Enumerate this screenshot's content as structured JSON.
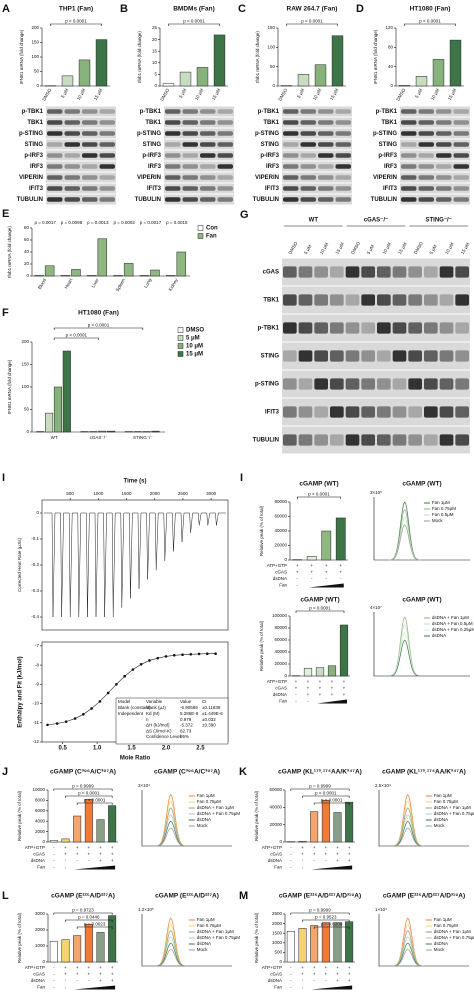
{
  "panels": [
    {
      "label": "A",
      "type": "bar",
      "title": "THP1 (Fan)",
      "ylabel": "IFNB1 mRNA (fold change)",
      "categories": [
        "DMSO",
        "5 μM",
        "10 μM",
        "15 μM"
      ],
      "values": [
        1,
        35,
        90,
        160
      ],
      "colors": [
        "#ffffff",
        "#c8dcc0",
        "#88b27c",
        "#3d7548"
      ],
      "ylim": [
        0,
        200
      ],
      "yticks": [
        0,
        50,
        100,
        150,
        200
      ],
      "annotations": [
        "p < 0.0001"
      ],
      "blot": [
        "p-TBK1",
        "TBK1",
        "p-STING",
        "STING",
        "p-IRF3",
        "IRF3",
        "VIPERIN",
        "IFIT3",
        "TUBULIN"
      ]
    },
    {
      "label": "B",
      "type": "bar",
      "title": "BMDMs (Fan)",
      "ylabel": "Ifnb1 mRNA (fold change)",
      "categories": [
        "DMSO",
        "5 μM",
        "10 μM",
        "15 μM"
      ],
      "values": [
        1,
        6,
        8,
        22
      ],
      "colors": [
        "#ffffff",
        "#c8dcc0",
        "#88b27c",
        "#3d7548"
      ],
      "ylim": [
        0,
        25
      ],
      "yticks": [
        0,
        5,
        10,
        15,
        20,
        25
      ],
      "annotations": [
        "p < 0.0001"
      ],
      "blot": [
        "p-TBK1",
        "TBK1",
        "p-STING",
        "STING",
        "p-IRF3",
        "IRF3",
        "VIPERIN",
        "IFIT3",
        "TUBULIN"
      ]
    },
    {
      "label": "C",
      "type": "bar",
      "title": "RAW 264.7 (Fan)",
      "ylabel": "Ifnb1 mRNA (fold change)",
      "categories": [
        "DMSO",
        "5 μM",
        "10 μM",
        "15 μM"
      ],
      "values": [
        1,
        30,
        55,
        130
      ],
      "colors": [
        "#ffffff",
        "#c8dcc0",
        "#88b27c",
        "#3d7548"
      ],
      "ylim": [
        0,
        150
      ],
      "yticks": [
        0,
        50,
        100,
        150
      ],
      "annotations": [
        "p < 0.0001"
      ],
      "blot": [
        "p-TBK1",
        "TBK1",
        "p-STING",
        "STING",
        "p-IRF3",
        "IRF3",
        "VIPERIN",
        "IFIT3",
        "TUBULIN"
      ]
    },
    {
      "label": "D",
      "type": "bar",
      "title": "HT1080 (Fan)",
      "ylabel": "IFNB1 mRNA (fold change)",
      "categories": [
        "DMSO",
        "5 μM",
        "10 μM",
        "15 μM"
      ],
      "values": [
        1,
        20,
        55,
        95
      ],
      "colors": [
        "#ffffff",
        "#c8dcc0",
        "#88b27c",
        "#3d7548"
      ],
      "ylim": [
        0,
        120
      ],
      "yticks": [
        0,
        40,
        80,
        120
      ],
      "annotations": [
        "p < 0.0001"
      ],
      "blot": [
        "p-TBK1",
        "TBK1",
        "p-STING",
        "STING",
        "p-IRF3",
        "IRF3",
        "VIPERIN",
        "IFIT3",
        "TUBULIN"
      ]
    },
    {
      "label": "E",
      "type": "grouped",
      "ylabel": "Ifnb1 mRNA (fold change)",
      "categories": [
        "Blood",
        "Heart",
        "Liver",
        "Spleen",
        "Lung",
        "Kidney"
      ],
      "series": [
        {
          "name": "Con",
          "color": "#ffffff",
          "values": [
            1,
            1,
            1,
            1,
            1,
            1
          ]
        },
        {
          "name": "Fan",
          "color": "#8fb880",
          "values": [
            17,
            11,
            62,
            21,
            10,
            40
          ]
        }
      ],
      "ylim": [
        0,
        80
      ],
      "yticks": [
        0,
        20,
        40,
        60,
        80
      ],
      "pvalues": [
        "p = 0.0017",
        "p = 0.0098",
        "p = 0.0013",
        "p = 0.0002",
        "p = 0.0017",
        "p = 0.0015"
      ]
    },
    {
      "label": "F",
      "type": "grouped",
      "title": "HT1080 (Fan)",
      "ylabel": "IFNB1 mRNA (fold change)",
      "categories": [
        "WT",
        "cGAS⁻/⁻",
        "STING⁻/⁻"
      ],
      "series": [
        {
          "name": "DMSO",
          "color": "#ffffff",
          "values": [
            1,
            1,
            1
          ]
        },
        {
          "name": "5 μM",
          "color": "#c8dcc0",
          "values": [
            42,
            1,
            1
          ]
        },
        {
          "name": "10 μM",
          "color": "#88b27c",
          "values": [
            100,
            2,
            1
          ]
        },
        {
          "name": "15 μM",
          "color": "#3d7548",
          "values": [
            180,
            2,
            2
          ]
        }
      ],
      "ylim": [
        0,
        200
      ],
      "yticks": [
        0,
        50,
        100,
        150,
        200
      ],
      "annotations": [
        "p < 0.0001",
        "p < 0.0001"
      ]
    },
    {
      "label": "G",
      "type": "blot",
      "groups": [
        {
          "name": "WT",
          "lanes": [
            "DMSO",
            "5 μM",
            "10 μM",
            "15 μM"
          ]
        },
        {
          "name": "cGAS⁻/⁻",
          "lanes": [
            "DMSO",
            "5 μM",
            "10 μM",
            "15 μM"
          ]
        },
        {
          "name": "STING⁻/⁻",
          "lanes": [
            "DMSO",
            "5 μM",
            "10 μM",
            "15 μM"
          ]
        }
      ],
      "rows": [
        "cGAS",
        "TBK1",
        "p-TBK1",
        "STING",
        "p-STING",
        "IFIT3",
        "TUBULIN"
      ]
    },
    {
      "label": "I",
      "type": "itc",
      "thermo": {
        "xlabel": "Time (s)",
        "xlim": [
          0,
          3300
        ],
        "xticks": [
          500,
          1000,
          1500,
          2000,
          2500,
          3000
        ],
        "ylabel": "Corrected Heat Rate (μJ/s)",
        "ylim": [
          -0.45,
          0.05
        ],
        "yticks": [
          0,
          -0.1,
          -0.2,
          -0.3,
          -0.4
        ]
      },
      "fit": {
        "xlabel": "Mole Ratio",
        "ylabel": "Enthalpy and Fit (kJ/mol)",
        "xlim": [
          0.2,
          2.9
        ],
        "xticks": [
          0.5,
          {
            "value": 1,
            "label": "1.0"
          },
          1.5,
          {
            "value": 2,
            "label": "2.0"
          },
          2.5
        ],
        "ylim": [
          -12,
          -6.8
        ],
        "yticks": [
          -7,
          -8,
          -9,
          -10,
          -11,
          -12
        ],
        "x": [
          0.28,
          0.42,
          0.55,
          0.68,
          0.8,
          0.92,
          1.04,
          1.16,
          1.28,
          1.4,
          1.52,
          1.64,
          1.76,
          1.88,
          2.0,
          2.12,
          2.24,
          2.36,
          2.48,
          2.6,
          2.72
        ],
        "y": [
          -11.11,
          -11.04,
          -10.94,
          -10.78,
          -10.56,
          -10.26,
          -9.89,
          -9.45,
          -9.0,
          -8.58,
          -8.23,
          -7.96,
          -7.76,
          -7.64,
          -7.55,
          -7.49,
          -7.46,
          -7.44,
          -7.42,
          -7.41,
          -7.41
        ]
      },
      "table": {
        "header": [
          "Model",
          "Variable",
          "Value",
          "CI"
        ],
        "model": [
          "Blank (constant)",
          "Independent"
        ],
        "variable": [
          "blank (μJ)",
          "Kd (M)",
          "n",
          "ΔH (kJ/mol)",
          "ΔS (J/mol·K)",
          "Confidence Level"
        ],
        "value": [
          "-6.90589",
          "5.286E-6",
          "0.979",
          "-5.372",
          "82.73",
          "95%"
        ],
        "ci": [
          "±0.11839",
          "±1.449E-6",
          "±0.032",
          "±0.390"
        ]
      }
    },
    {
      "label": "I",
      "type": "bar",
      "title": "cGAMP (WT)",
      "ylabel": "Relative peak (% of total)",
      "values": [
        500,
        5000,
        40000,
        58000
      ],
      "colors": [
        "#ffffff",
        "#dfeedd",
        "#8fb880",
        "#3d7548"
      ],
      "ylim": [
        0,
        80000
      ],
      "yticks": [
        0,
        20000,
        40000,
        60000,
        80000
      ],
      "annotations": [
        "p < 0.0001"
      ],
      "treatments": [
        {
          "label": "ATP+GTP",
          "signs": [
            "+",
            "+",
            "+",
            "+"
          ]
        },
        {
          "label": "cGAS",
          "signs": [
            "+",
            "+",
            "+",
            "+"
          ]
        },
        {
          "label": "dsDNA",
          "signs": [
            "-",
            "-",
            "-",
            "-"
          ]
        },
        {
          "label": "Fan",
          "signs": [
            "-"
          ]
        }
      ]
    },
    {
      "type": "chrom",
      "title": "cGAMP (WT)",
      "scale": "3×10⁵",
      "legend": [
        "Fan 1μM",
        "Fan 0.75μM",
        "Fan 0.5μM",
        "Mock"
      ],
      "colors": [
        "#3d7548",
        "#88b27c",
        "#c8dcc0",
        "#999999"
      ]
    },
    {
      "type": "bar",
      "title": "cGAMP (WT)",
      "ylabel": "Relative peak (% of total)",
      "values": [
        500,
        13000,
        14000,
        17000,
        85000
      ],
      "colors": [
        "#ffffff",
        "#dfeedd",
        "#c8dcc0",
        "#88b27c",
        "#3d7548"
      ],
      "ylim": [
        0,
        100000
      ],
      "yticks": [
        0,
        20000,
        40000,
        60000,
        80000,
        100000
      ],
      "annotations": [
        "p < 0.0001"
      ],
      "treatments": [
        {
          "label": "ATP+GTP",
          "signs": [
            "+",
            "+",
            "+",
            "+",
            "+"
          ]
        },
        {
          "label": "cGAS",
          "signs": [
            "+",
            "+",
            "+",
            "+",
            "+"
          ]
        },
        {
          "label": "dsDNA",
          "signs": [
            "-",
            "+",
            "+",
            "+",
            "+"
          ]
        },
        {
          "label": "Fan",
          "signs": [
            "-",
            "-"
          ]
        }
      ]
    },
    {
      "type": "chrom",
      "title": "cGAMP (WT)",
      "scale": "4×10⁷",
      "legend": [
        "dsDNA + Fan 1μM",
        "dsDNA + Fan 0.5μM",
        "dsDNA + Fan 0.25μM",
        "dsDNA"
      ],
      "colors": [
        "#88b27c",
        "#c8dcc0",
        "#dfeedd",
        "#3d7548"
      ]
    },
    {
      "label": "J",
      "type": "bar",
      "title": "cGAMP (C³⁹⁶A/C³⁹⁷A)",
      "ylabel": "Relative peak (% of total)",
      "values": [
        300,
        600,
        5000,
        8200,
        4300,
        7000
      ],
      "colors": [
        "#ffffff",
        "#f3d46e",
        "#f3a56b",
        "#ef7b3b",
        "#8a9f88",
        "#3d7548"
      ],
      "ylim": [
        0,
        10000
      ],
      "yticks": [
        0,
        2000,
        4000,
        6000,
        8000,
        10000
      ],
      "annotations": [
        "p = 0.9999",
        "p < 0.0001",
        "p < 0.0001"
      ],
      "treatments": [
        {
          "label": "ATP+GTP",
          "signs": [
            "-",
            "+",
            "+",
            "+",
            "+",
            "+"
          ]
        },
        {
          "label": "cGAS",
          "signs": [
            "-",
            "+",
            "+",
            "+",
            "+",
            "+"
          ]
        },
        {
          "label": "dsDNA",
          "signs": [
            "-",
            "-",
            "-",
            "-",
            "+",
            "+"
          ]
        },
        {
          "label": "Fan",
          "signs": [
            "-",
            "-"
          ]
        }
      ]
    },
    {
      "type": "chrom",
      "title": "cGAMP (C³⁹⁶A/C³⁹⁷A)",
      "scale": "3×10⁴",
      "legend": [
        "Fan 1μM",
        "Fan 0.75μM",
        "dsDNA + Fan 1μM",
        "dsDNA + Fan 0.75μM",
        "dsDNA",
        "Mock"
      ],
      "colors": [
        "#ef7b3b",
        "#f3d46e",
        "#8a9f88",
        "#b5c7b0",
        "#3d7548",
        "#999999"
      ]
    },
    {
      "label": "K",
      "type": "bar",
      "title": "cGAMP (KL¹⁷³˒¹⁷⁴AA/K³⁴⁷A)",
      "ylabel": "Relative peak (% of total)",
      "values": [
        400,
        900,
        35000,
        48000,
        34000,
        46000
      ],
      "colors": [
        "#ffffff",
        "#f3d46e",
        "#f3a56b",
        "#ef7b3b",
        "#8a9f88",
        "#3d7548"
      ],
      "ylim": [
        0,
        60000
      ],
      "yticks": [
        0,
        20000,
        40000,
        60000
      ],
      "annotations": [
        "p = 0.9999",
        "p < 0.0001",
        "p < 0.0001"
      ],
      "treatments": [
        {
          "label": "ATP+GTP",
          "signs": [
            "-",
            "+",
            "+",
            "+",
            "+",
            "+"
          ]
        },
        {
          "label": "cGAS",
          "signs": [
            "-",
            "+",
            "+",
            "+",
            "+",
            "+"
          ]
        },
        {
          "label": "dsDNA",
          "signs": [
            "-",
            "-",
            "-",
            "-",
            "+",
            "+"
          ]
        },
        {
          "label": "Fan",
          "signs": [
            "-",
            "-"
          ]
        }
      ]
    },
    {
      "type": "chrom",
      "title": "cGAMP (KL¹⁷³˒¹⁷⁴AA/K³⁴⁷A)",
      "scale": "2.5×10⁴",
      "legend": [
        "Fan 1μM",
        "Fan 0.75μM",
        "dsDNA + Fan 1μM",
        "dsDNA + Fan 0.75μM",
        "dsDNA",
        "Mock"
      ],
      "colors": [
        "#ef7b3b",
        "#f3d46e",
        "#8a9f88",
        "#b5c7b0",
        "#3d7548",
        "#999999"
      ]
    },
    {
      "label": "L",
      "type": "bar",
      "title": "cGAMP (E²²⁵A/D²²⁷A)",
      "ylabel": "Relative peak (% of total)",
      "values": [
        1300,
        1400,
        1650,
        2350,
        1850,
        2900
      ],
      "colors": [
        "#ffffff",
        "#f3d46e",
        "#f3a56b",
        "#ef7b3b",
        "#8a9f88",
        "#3d7548"
      ],
      "ylim": [
        0,
        3000
      ],
      "yticks": [
        0,
        1000,
        2000,
        3000
      ],
      "annotations": [
        "p = 0.9723",
        "p = 0.0446",
        "p = 0.0023"
      ],
      "treatments": [
        {
          "label": "ATP+GTP",
          "signs": [
            "-",
            "+",
            "+",
            "+",
            "+",
            "+"
          ]
        },
        {
          "label": "cGAS",
          "signs": [
            "-",
            "+",
            "+",
            "+",
            "+",
            "+"
          ]
        },
        {
          "label": "dsDNA",
          "signs": [
            "-",
            "-",
            "-",
            "-",
            "+",
            "+"
          ]
        },
        {
          "label": "Fan",
          "signs": [
            "-",
            "-"
          ]
        }
      ]
    },
    {
      "type": "chrom",
      "title": "cGAMP (E²²⁵A/D²²⁷A)",
      "scale": "1.2×10⁵",
      "legend": [
        "Fan 1μM",
        "Fan 0.75μM",
        "dsDNA + Fan 1μM",
        "dsDNA + Fan 0.75μM",
        "dsDNA",
        "Mock"
      ],
      "colors": [
        "#ef7b3b",
        "#f3d46e",
        "#8a9f88",
        "#b5c7b0",
        "#3d7548",
        "#999999"
      ]
    },
    {
      "label": "M",
      "type": "bar",
      "title": "cGAMP (E²²⁵A/D²²⁷A/D³¹⁹A)",
      "ylabel": "Relative peak (% of total)",
      "values": [
        1600,
        1750,
        1900,
        2050,
        2050,
        2100
      ],
      "colors": [
        "#ffffff",
        "#f3d46e",
        "#f3a56b",
        "#ef7b3b",
        "#8a9f88",
        "#3d7548"
      ],
      "ylim": [
        0,
        2500
      ],
      "yticks": [
        0,
        500,
        1000,
        1500,
        2000,
        2500
      ],
      "annotations": [
        "p = 0.9999",
        "p = 0.9523",
        "p = 0.6200"
      ],
      "treatments": [
        {
          "label": "ATP+GTP",
          "signs": [
            "-",
            "+",
            "+",
            "+",
            "+",
            "+"
          ]
        },
        {
          "label": "cGAS",
          "signs": [
            "-",
            "+",
            "+",
            "+",
            "+",
            "+"
          ]
        },
        {
          "label": "dsDNA",
          "signs": [
            "-",
            "-",
            "-",
            "-",
            "+",
            "+"
          ]
        },
        {
          "label": "Fan",
          "signs": [
            "-",
            "-"
          ]
        }
      ]
    },
    {
      "type": "chrom",
      "title": "cGAMP (E²²⁵A/D²²⁷A/D³¹⁹A)",
      "scale": "1×10⁴",
      "legend": [
        "Fan 1μM",
        "Fan 0.75μM",
        "dsDNA + Fan 1μM",
        "dsDNA + Fan 0.75μM",
        "dsDNA",
        "Mock"
      ],
      "colors": [
        "#ef7b3b",
        "#f3d46e",
        "#8a9f88",
        "#b5c7b0",
        "#3d7548",
        "#999999"
      ]
    }
  ]
}
